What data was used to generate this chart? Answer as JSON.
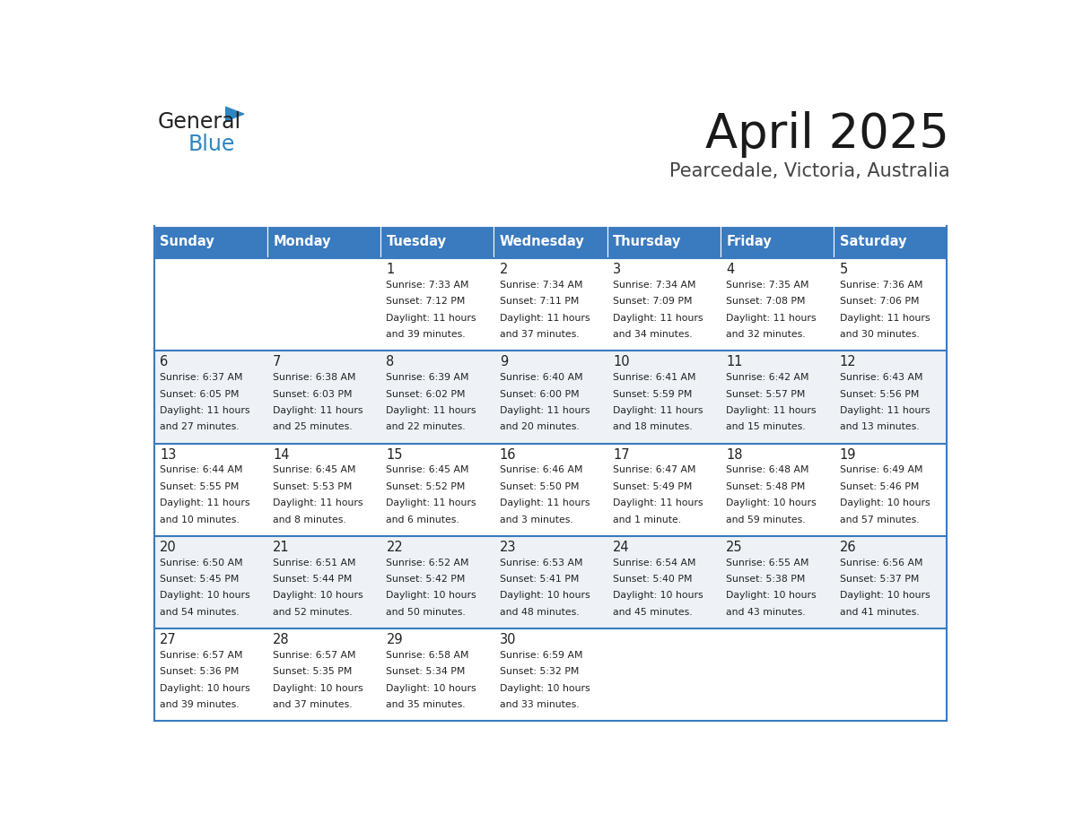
{
  "title": "April 2025",
  "subtitle": "Pearcedale, Victoria, Australia",
  "header_color": "#3a7abf",
  "header_text_color": "#ffffff",
  "days_of_week": [
    "Sunday",
    "Monday",
    "Tuesday",
    "Wednesday",
    "Thursday",
    "Friday",
    "Saturday"
  ],
  "weeks": [
    [
      {
        "day": "",
        "sunrise": "",
        "sunset": "",
        "daylight": ""
      },
      {
        "day": "",
        "sunrise": "",
        "sunset": "",
        "daylight": ""
      },
      {
        "day": "1",
        "sunrise": "7:33 AM",
        "sunset": "7:12 PM",
        "daylight": "11 hours\nand 39 minutes."
      },
      {
        "day": "2",
        "sunrise": "7:34 AM",
        "sunset": "7:11 PM",
        "daylight": "11 hours\nand 37 minutes."
      },
      {
        "day": "3",
        "sunrise": "7:34 AM",
        "sunset": "7:09 PM",
        "daylight": "11 hours\nand 34 minutes."
      },
      {
        "day": "4",
        "sunrise": "7:35 AM",
        "sunset": "7:08 PM",
        "daylight": "11 hours\nand 32 minutes."
      },
      {
        "day": "5",
        "sunrise": "7:36 AM",
        "sunset": "7:06 PM",
        "daylight": "11 hours\nand 30 minutes."
      }
    ],
    [
      {
        "day": "6",
        "sunrise": "6:37 AM",
        "sunset": "6:05 PM",
        "daylight": "11 hours\nand 27 minutes."
      },
      {
        "day": "7",
        "sunrise": "6:38 AM",
        "sunset": "6:03 PM",
        "daylight": "11 hours\nand 25 minutes."
      },
      {
        "day": "8",
        "sunrise": "6:39 AM",
        "sunset": "6:02 PM",
        "daylight": "11 hours\nand 22 minutes."
      },
      {
        "day": "9",
        "sunrise": "6:40 AM",
        "sunset": "6:00 PM",
        "daylight": "11 hours\nand 20 minutes."
      },
      {
        "day": "10",
        "sunrise": "6:41 AM",
        "sunset": "5:59 PM",
        "daylight": "11 hours\nand 18 minutes."
      },
      {
        "day": "11",
        "sunrise": "6:42 AM",
        "sunset": "5:57 PM",
        "daylight": "11 hours\nand 15 minutes."
      },
      {
        "day": "12",
        "sunrise": "6:43 AM",
        "sunset": "5:56 PM",
        "daylight": "11 hours\nand 13 minutes."
      }
    ],
    [
      {
        "day": "13",
        "sunrise": "6:44 AM",
        "sunset": "5:55 PM",
        "daylight": "11 hours\nand 10 minutes."
      },
      {
        "day": "14",
        "sunrise": "6:45 AM",
        "sunset": "5:53 PM",
        "daylight": "11 hours\nand 8 minutes."
      },
      {
        "day": "15",
        "sunrise": "6:45 AM",
        "sunset": "5:52 PM",
        "daylight": "11 hours\nand 6 minutes."
      },
      {
        "day": "16",
        "sunrise": "6:46 AM",
        "sunset": "5:50 PM",
        "daylight": "11 hours\nand 3 minutes."
      },
      {
        "day": "17",
        "sunrise": "6:47 AM",
        "sunset": "5:49 PM",
        "daylight": "11 hours\nand 1 minute."
      },
      {
        "day": "18",
        "sunrise": "6:48 AM",
        "sunset": "5:48 PM",
        "daylight": "10 hours\nand 59 minutes."
      },
      {
        "day": "19",
        "sunrise": "6:49 AM",
        "sunset": "5:46 PM",
        "daylight": "10 hours\nand 57 minutes."
      }
    ],
    [
      {
        "day": "20",
        "sunrise": "6:50 AM",
        "sunset": "5:45 PM",
        "daylight": "10 hours\nand 54 minutes."
      },
      {
        "day": "21",
        "sunrise": "6:51 AM",
        "sunset": "5:44 PM",
        "daylight": "10 hours\nand 52 minutes."
      },
      {
        "day": "22",
        "sunrise": "6:52 AM",
        "sunset": "5:42 PM",
        "daylight": "10 hours\nand 50 minutes."
      },
      {
        "day": "23",
        "sunrise": "6:53 AM",
        "sunset": "5:41 PM",
        "daylight": "10 hours\nand 48 minutes."
      },
      {
        "day": "24",
        "sunrise": "6:54 AM",
        "sunset": "5:40 PM",
        "daylight": "10 hours\nand 45 minutes."
      },
      {
        "day": "25",
        "sunrise": "6:55 AM",
        "sunset": "5:38 PM",
        "daylight": "10 hours\nand 43 minutes."
      },
      {
        "day": "26",
        "sunrise": "6:56 AM",
        "sunset": "5:37 PM",
        "daylight": "10 hours\nand 41 minutes."
      }
    ],
    [
      {
        "day": "27",
        "sunrise": "6:57 AM",
        "sunset": "5:36 PM",
        "daylight": "10 hours\nand 39 minutes."
      },
      {
        "day": "28",
        "sunrise": "6:57 AM",
        "sunset": "5:35 PM",
        "daylight": "10 hours\nand 37 minutes."
      },
      {
        "day": "29",
        "sunrise": "6:58 AM",
        "sunset": "5:34 PM",
        "daylight": "10 hours\nand 35 minutes."
      },
      {
        "day": "30",
        "sunrise": "6:59 AM",
        "sunset": "5:32 PM",
        "daylight": "10 hours\nand 33 minutes."
      },
      {
        "day": "",
        "sunrise": "",
        "sunset": "",
        "daylight": ""
      },
      {
        "day": "",
        "sunrise": "",
        "sunset": "",
        "daylight": ""
      },
      {
        "day": "",
        "sunrise": "",
        "sunset": "",
        "daylight": ""
      }
    ]
  ],
  "alt_row_color": "#eef2f7",
  "white_color": "#ffffff",
  "text_color": "#222222",
  "border_color": "#3a7abf",
  "logo_general_color": "#222222",
  "logo_blue_color": "#2e86c1",
  "fig_width": 11.88,
  "fig_height": 9.18,
  "dpi": 100
}
